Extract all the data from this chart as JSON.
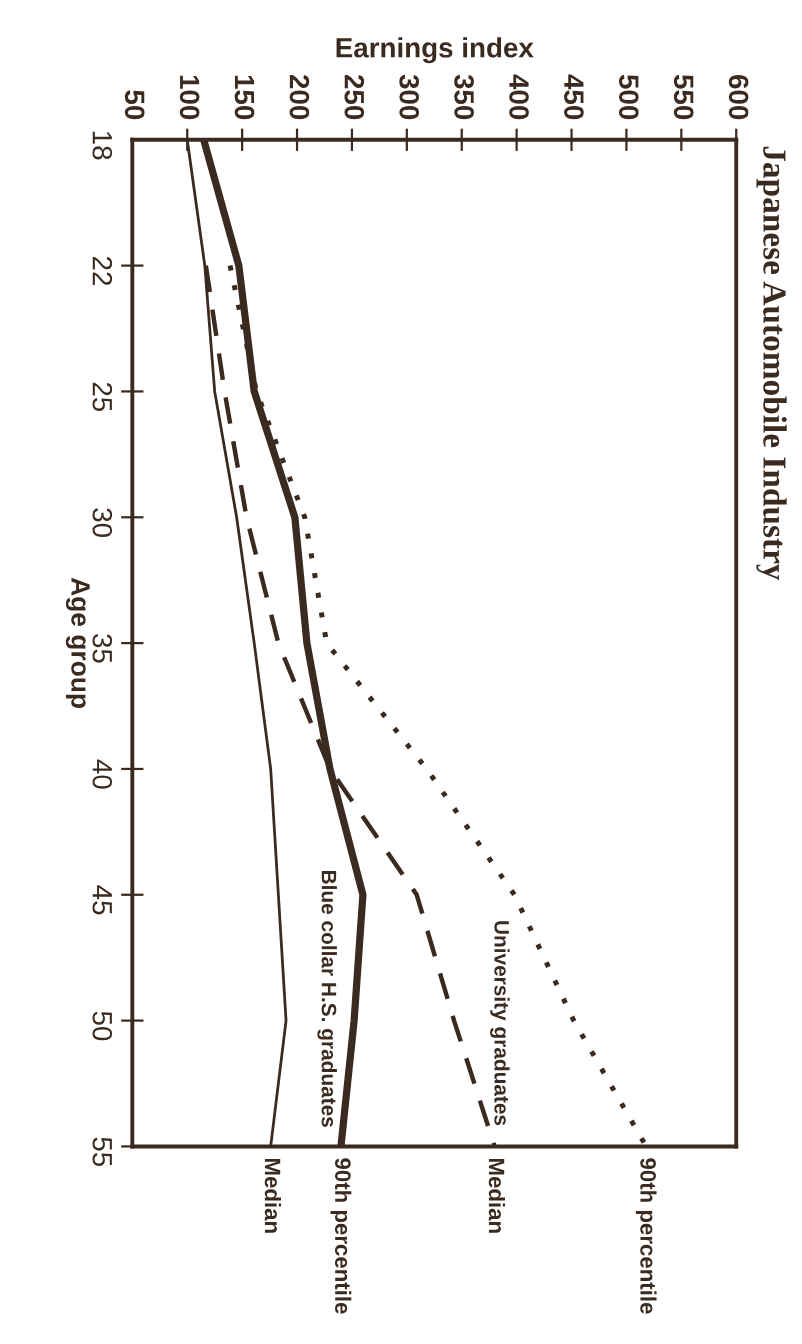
{
  "chart_data": {
    "type": "line",
    "orientation": "horizontal",
    "title": "Japanese Automobile Industry",
    "xlabel": "Earnings index",
    "ylabel": "Age group",
    "categories": [
      "18",
      "22",
      "25",
      "30",
      "35",
      "40",
      "45",
      "50",
      "55"
    ],
    "series": [
      {
        "name": "Median",
        "color": "#3a2a20",
        "line_style": "solid",
        "values": [
          100,
          116,
          125,
          145,
          161,
          176,
          183,
          190,
          176
        ]
      },
      {
        "name": "90th percentile",
        "color": "#3a2a20",
        "line_style": "solid",
        "values": [
          115,
          147,
          161,
          198,
          209,
          230,
          260,
          252,
          240
        ]
      },
      {
        "name": "Median",
        "color": "#3a2a20",
        "line_style": "dashed",
        "values": [
          null,
          117,
          134,
          154,
          183,
          230,
          309,
          343,
          380
        ]
      },
      {
        "name": "90th percentile",
        "color": "#3a2a20",
        "line_style": "dotted",
        "values": [
          null,
          139,
          163,
          207,
          227,
          318,
          398,
          452,
          518
        ]
      }
    ],
    "annotations": [
      "Blue collar H.S. graduates",
      "University graduates"
    ],
    "xlim": [
      50,
      600
    ],
    "xticks": [
      50,
      100,
      150,
      200,
      250,
      300,
      350,
      400,
      450,
      500,
      550,
      600
    ],
    "grid": false,
    "legend": false,
    "marker": "none"
  }
}
